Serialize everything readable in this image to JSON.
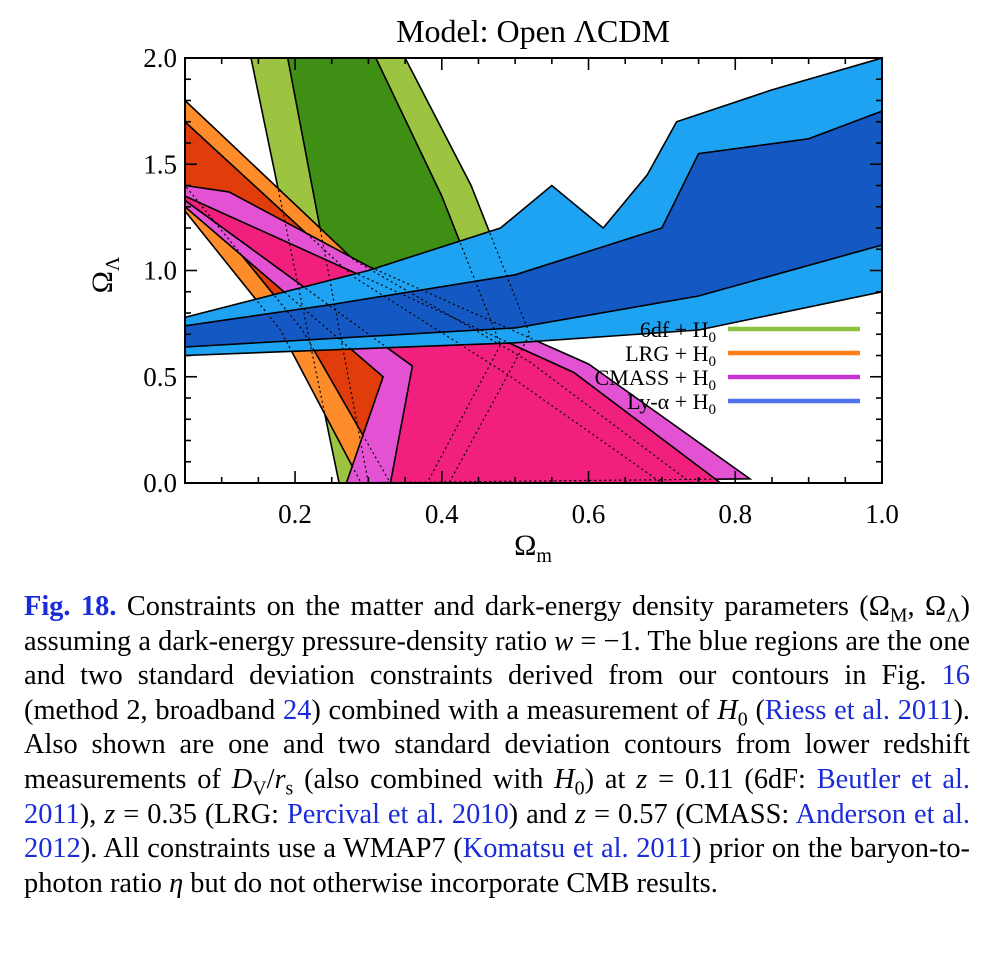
{
  "chart_data": {
    "type": "contour",
    "title": "Model: Open ΛCDM",
    "xlabel": "Ω",
    "xlabel_sub": "m",
    "ylabel": "Ω",
    "ylabel_sub": "Λ",
    "xlim": [
      0.05,
      1.0
    ],
    "ylim": [
      0.0,
      2.0
    ],
    "xticks": [
      0.2,
      0.4,
      0.6,
      0.8,
      1.0
    ],
    "xtick_labels": [
      "0.2",
      "0.4",
      "0.6",
      "0.8",
      "1.0"
    ],
    "yticks": [
      0.0,
      0.5,
      1.0,
      1.5,
      2.0
    ],
    "ytick_labels": [
      "0.0",
      "0.5",
      "1.0",
      "1.5",
      "2.0"
    ],
    "legend_position": "right-middle",
    "series": [
      {
        "name": "6df + H",
        "name_sub": "0",
        "color": "#8bc23f",
        "outer_color": "#9cc440",
        "inner_color": "#3f8f14",
        "outer": [
          [
            0.14,
            2.0
          ],
          [
            0.26,
            0.0
          ],
          [
            0.41,
            0.0
          ],
          [
            0.52,
            0.7
          ],
          [
            0.44,
            1.4
          ],
          [
            0.35,
            2.0
          ]
        ],
        "inner": [
          [
            0.19,
            2.0
          ],
          [
            0.3,
            0.0
          ],
          [
            0.38,
            0.0
          ],
          [
            0.48,
            0.65
          ],
          [
            0.4,
            1.35
          ],
          [
            0.31,
            2.0
          ]
        ]
      },
      {
        "name": "LRG + H",
        "name_sub": "0",
        "color": "#ff7f1a",
        "outer_color": "#ff8c2a",
        "inner_color": "#e03c0c",
        "outer": [
          [
            0.05,
            1.8
          ],
          [
            0.09,
            1.67
          ],
          [
            0.28,
            1.05
          ],
          [
            0.52,
            0.57
          ],
          [
            0.74,
            0.0
          ],
          [
            0.29,
            0.0
          ],
          [
            0.18,
            0.72
          ],
          [
            0.05,
            1.28
          ]
        ],
        "inner": [
          [
            0.05,
            1.7
          ],
          [
            0.28,
            0.97
          ],
          [
            0.49,
            0.51
          ],
          [
            0.7,
            0.0
          ],
          [
            0.33,
            0.0
          ],
          [
            0.21,
            0.72
          ],
          [
            0.05,
            1.4
          ]
        ]
      },
      {
        "name": "CMASS + H",
        "name_sub": "0",
        "color": "#c832d0",
        "outer_color": "#e452d4",
        "inner_color": "#f11f7e",
        "outer": [
          [
            0.05,
            1.4
          ],
          [
            0.11,
            1.37
          ],
          [
            0.3,
            1.02
          ],
          [
            0.6,
            0.56
          ],
          [
            0.82,
            0.02
          ],
          [
            0.27,
            0.0
          ],
          [
            0.32,
            0.5
          ],
          [
            0.05,
            1.3
          ]
        ],
        "inner": [
          [
            0.05,
            1.35
          ],
          [
            0.3,
            0.96
          ],
          [
            0.58,
            0.52
          ],
          [
            0.78,
            0.0
          ],
          [
            0.33,
            0.0
          ],
          [
            0.36,
            0.55
          ],
          [
            0.05,
            1.33
          ]
        ]
      },
      {
        "name": "Ly-α + H",
        "name_sub": "0",
        "color": "#5070f0",
        "outer_color": "#1ea2f2",
        "inner_color": "#1458c4",
        "outer": [
          [
            0.05,
            0.78
          ],
          [
            0.3,
            1.0
          ],
          [
            0.48,
            1.2
          ],
          [
            0.55,
            1.4
          ],
          [
            0.62,
            1.2
          ],
          [
            0.68,
            1.45
          ],
          [
            0.72,
            1.7
          ],
          [
            0.85,
            1.85
          ],
          [
            1.0,
            2.0
          ],
          [
            1.0,
            0.9
          ],
          [
            0.75,
            0.72
          ],
          [
            0.5,
            0.66
          ],
          [
            0.05,
            0.6
          ]
        ],
        "inner": [
          [
            0.05,
            0.74
          ],
          [
            0.25,
            0.84
          ],
          [
            0.5,
            0.98
          ],
          [
            0.7,
            1.2
          ],
          [
            0.75,
            1.55
          ],
          [
            0.9,
            1.62
          ],
          [
            1.0,
            1.75
          ],
          [
            1.0,
            1.12
          ],
          [
            0.75,
            0.88
          ],
          [
            0.5,
            0.73
          ],
          [
            0.05,
            0.64
          ]
        ]
      }
    ]
  },
  "caption": {
    "figure_label": "Fig. 18.",
    "p1": " Constraints on the matter and dark-energy density parameters (Ω",
    "s1": "M",
    "p2": ", Ω",
    "s2": "Λ",
    "p3": ") assuming a dark-energy pressure-density ratio ",
    "v_w": "w",
    "p4": " = −1. The blue regions are the one and two standard deviation constraints derived from our contours in Fig. ",
    "l1": "16",
    "p5": " (method 2, broadband ",
    "l2": "24",
    "p6": ") combined with a measurement of ",
    "v_h1": "H",
    "s3": "0",
    "p7": " (",
    "l3": "Riess et al. 2011",
    "p8": "). Also shown are one and two standard deviation contours from lower redshift measurements of ",
    "v_d": "D",
    "s4": "V",
    "p9": "/",
    "v_r": "r",
    "s5": "s",
    "p10": " (also combined with ",
    "v_h2": "H",
    "s6": "0",
    "p11": ") at ",
    "v_z1": "z",
    "p12": " = 0.11 (6dF: ",
    "l4": "Beutler et al. 2011",
    "p13": "), ",
    "v_z2": "z",
    "p14": " = 0.35 (LRG: ",
    "l5": "Percival et al. 2010",
    "p15": ") and ",
    "v_z3": "z",
    "p16": " = 0.57 (CMASS: ",
    "l6": "Anderson et al. 2012",
    "p17": "). All constraints use a WMAP7 (",
    "l7": "Komatsu et al. 2011",
    "p18": ") prior on the baryon-to-photon ratio ",
    "v_eta": "η",
    "p19": " but do not otherwise incorporate CMB results."
  }
}
